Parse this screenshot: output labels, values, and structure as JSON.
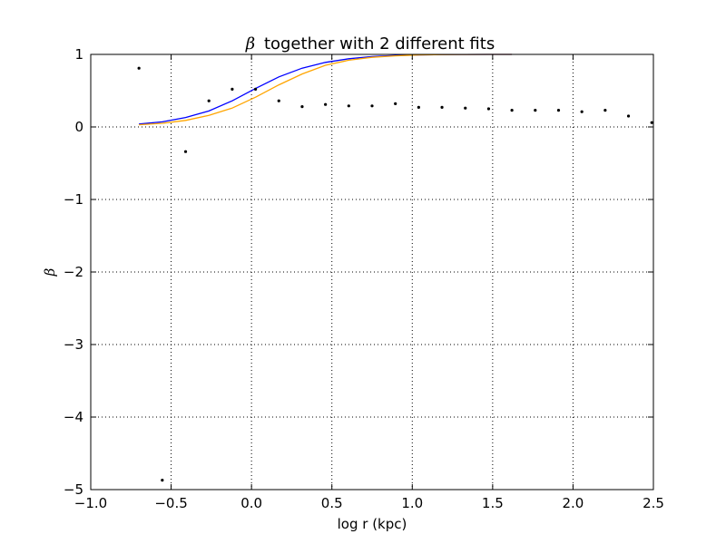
{
  "chart_data": {
    "type": "line",
    "title_symbol": "β",
    "title_rest": "together with 2 different fits",
    "xlabel": "log r (kpc)",
    "ylabel": "β",
    "xlim": [
      -1.0,
      2.5
    ],
    "ylim": [
      -5,
      1
    ],
    "xticks": [
      -1.0,
      -0.5,
      0.0,
      0.5,
      1.0,
      1.5,
      2.0,
      2.5
    ],
    "xtick_labels": [
      "−1.0",
      "−0.5",
      "0.0",
      "0.5",
      "1.0",
      "1.5",
      "2.0",
      "2.5"
    ],
    "yticks": [
      -5,
      -4,
      -3,
      -2,
      -1,
      0,
      1
    ],
    "ytick_labels": [
      "−5",
      "−4",
      "−3",
      "−2",
      "−1",
      "0",
      "1"
    ],
    "grid": true,
    "points": {
      "color": "#000000",
      "x": [
        -0.7,
        -0.555,
        -0.41,
        -0.265,
        -0.12,
        0.025,
        0.17,
        0.315,
        0.46,
        0.605,
        0.75,
        0.895,
        1.04,
        1.185,
        1.33,
        1.475,
        1.62,
        1.765,
        1.91,
        2.055,
        2.2,
        2.345,
        2.49
      ],
      "y": [
        0.81,
        -4.87,
        -0.34,
        0.36,
        0.52,
        0.52,
        0.36,
        0.28,
        0.31,
        0.29,
        0.29,
        0.32,
        0.27,
        0.27,
        0.26,
        0.25,
        0.23,
        0.23,
        0.23,
        0.21,
        0.23,
        0.15,
        0.06
      ]
    },
    "series": [
      {
        "color": "#0000ff",
        "x": [
          -0.7,
          -0.555,
          -0.41,
          -0.265,
          -0.12,
          0.025,
          0.17,
          0.315,
          0.46,
          0.605,
          0.75,
          0.895,
          1.04,
          1.185,
          1.33,
          1.475,
          1.62
        ],
        "y": [
          0.04,
          0.07,
          0.13,
          0.22,
          0.36,
          0.53,
          0.69,
          0.81,
          0.89,
          0.94,
          0.97,
          0.985,
          0.993,
          0.997,
          0.999,
          1.0,
          1.0
        ]
      },
      {
        "color": "#ffa500",
        "x": [
          -0.7,
          -0.555,
          -0.41,
          -0.265,
          -0.12,
          0.025,
          0.17,
          0.315,
          0.46,
          0.605,
          0.75,
          0.895,
          1.04,
          1.185,
          1.33,
          1.475,
          1.62
        ],
        "y": [
          0.03,
          0.05,
          0.09,
          0.16,
          0.26,
          0.41,
          0.58,
          0.73,
          0.85,
          0.92,
          0.96,
          0.98,
          0.993,
          0.997,
          0.999,
          1.0,
          1.0
        ]
      }
    ]
  }
}
